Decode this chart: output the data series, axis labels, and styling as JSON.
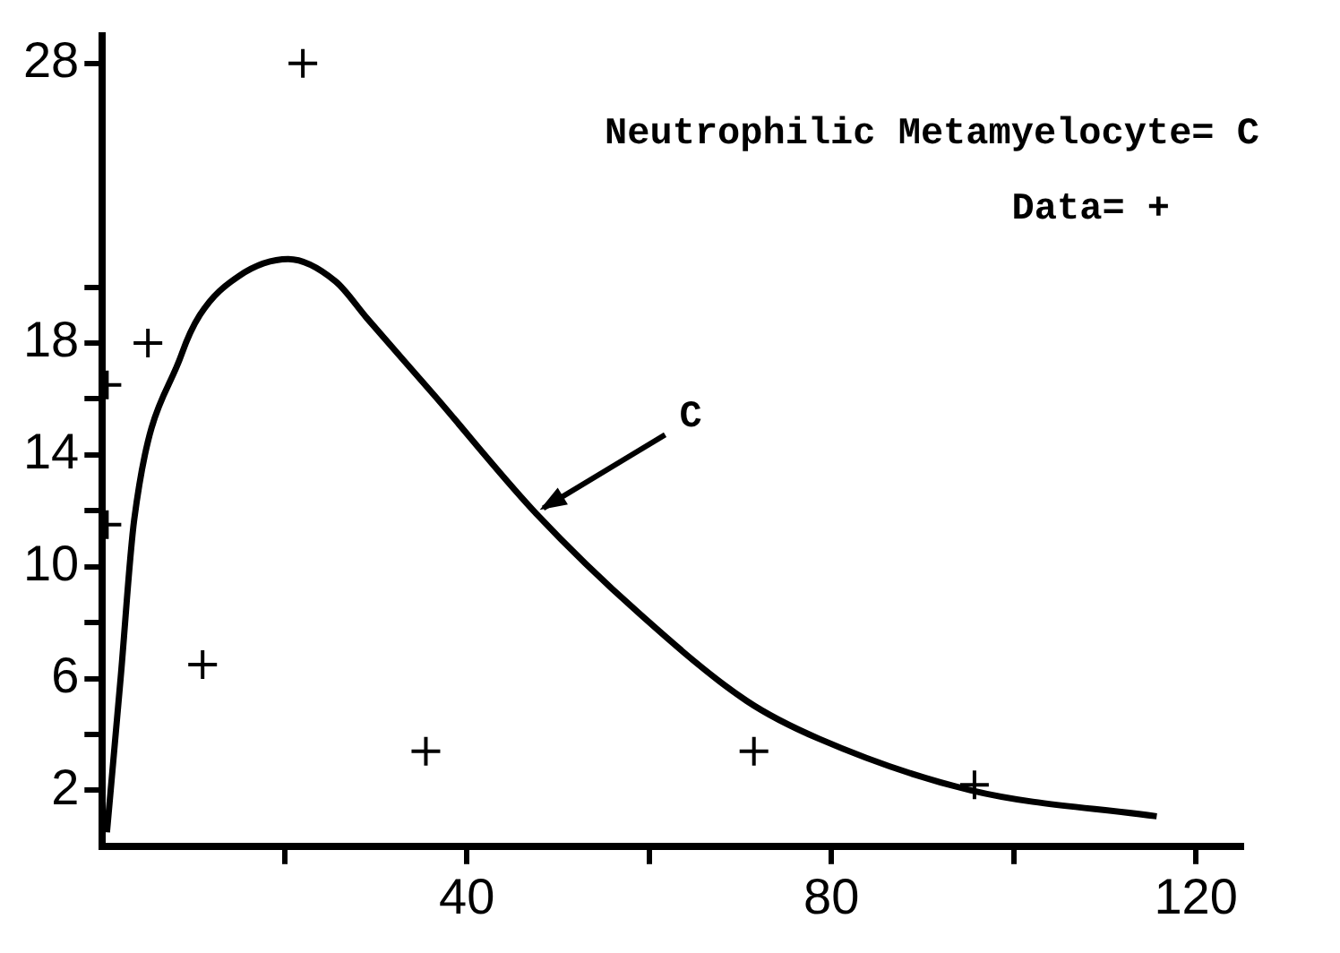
{
  "chart_data": {
    "type": "line",
    "xlim": [
      0,
      125
    ],
    "xticks": [
      {
        "value": 20,
        "label": null
      },
      40,
      {
        "value": 60,
        "label": null
      },
      80,
      {
        "value": 100,
        "label": null
      },
      120
    ],
    "ylim": [
      0,
      29
    ],
    "yticks": [
      2,
      {
        "value": 4,
        "label": null
      },
      6,
      {
        "value": 8,
        "label": null
      },
      10,
      {
        "value": 12,
        "label": null
      },
      14,
      {
        "value": 16,
        "label": null
      },
      18,
      {
        "value": 20,
        "label": null
      },
      28
    ],
    "grid": false,
    "legend": false,
    "series": [
      {
        "color": "#000000",
        "marker": "none",
        "x": [
          0.5,
          2,
          3.5,
          8.7,
          10.7,
          15,
          20.4,
          25.6,
          29,
          36.5,
          47.6,
          59,
          70.7,
          78.6,
          95.3,
          115.7
        ],
        "values": [
          0.5,
          6,
          11.7,
          17.6,
          19,
          20.4,
          21,
          20.2,
          18.9,
          16.1,
          11.9,
          8.3,
          5.2,
          3.85,
          2,
          1.07
        ]
      },
      {
        "type": "scatter",
        "color": "#000000",
        "marker": "cross",
        "x": [
          22,
          5,
          0.5,
          0.5,
          11,
          35.5,
          71.5,
          95.7
        ],
        "values": [
          28,
          18,
          16.5,
          11.5,
          6.5,
          3.4,
          3.4,
          2.2
        ]
      }
    ],
    "annotations": [
      "Neutrophilic Metamyelocyte= C",
      "Data= +",
      {
        "text": "C",
        "x": 47.6,
        "y": 11.9
      }
    ]
  }
}
